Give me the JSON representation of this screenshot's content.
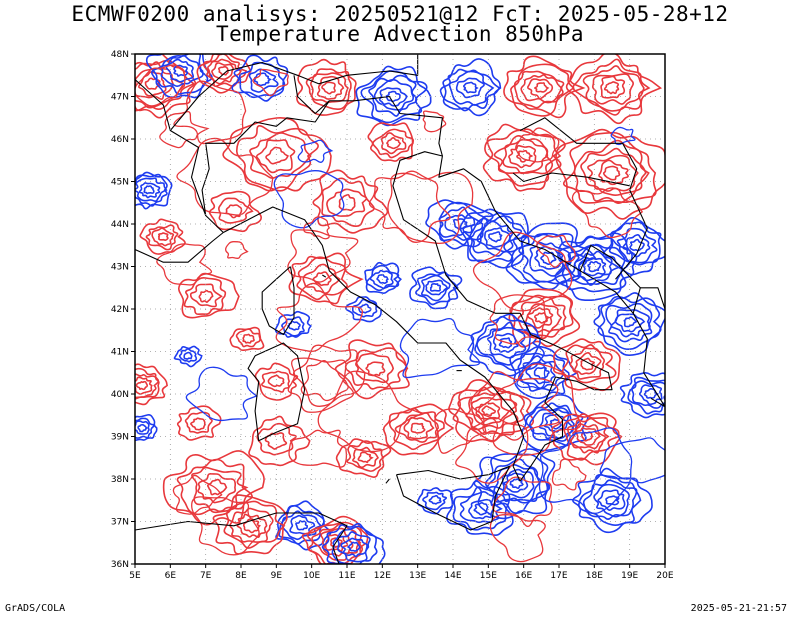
{
  "title_line1": "ECMWF0200 analisys: 20250521@12 FcT: 2025-05-28+12",
  "title_line2": "Temperature Advection 850hPa",
  "credit": "GrADS/COLA",
  "timestamp": "2025-05-21-21:57",
  "map": {
    "lon_range": [
      5,
      20
    ],
    "lat_range": [
      36,
      48
    ],
    "x_ticks": [
      "5E",
      "6E",
      "7E",
      "8E",
      "9E",
      "10E",
      "11E",
      "12E",
      "13E",
      "14E",
      "15E",
      "16E",
      "17E",
      "18E",
      "19E",
      "20E"
    ],
    "y_ticks": [
      "36N",
      "37N",
      "38N",
      "39N",
      "40N",
      "41N",
      "42N",
      "43N",
      "44N",
      "45N",
      "46N",
      "47N",
      "48N"
    ],
    "grid": "dotted",
    "colors": {
      "positive": "#e8383c",
      "negative": "#1e3cf0",
      "border": "#000000"
    }
  }
}
